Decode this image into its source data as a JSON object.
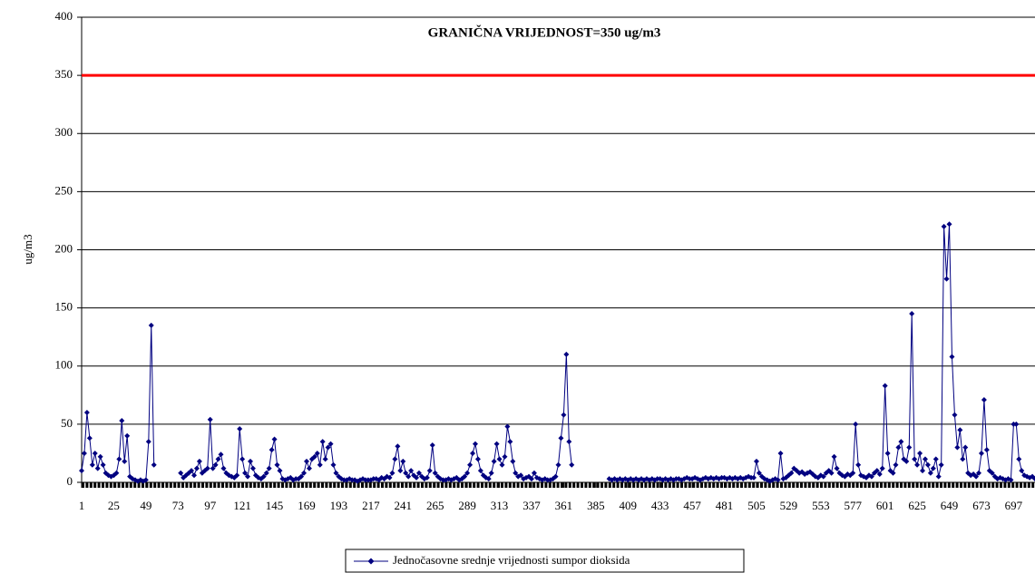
{
  "chart_data": {
    "type": "line",
    "ylabel": "ug/m3",
    "annotation": "GRANIČNA VRIJEDNOST=350 ug/m3",
    "limit": 350,
    "limit_color": "#ff0000",
    "xlim": [
      1,
      713
    ],
    "xticks": [
      1,
      25,
      49,
      73,
      97,
      121,
      145,
      169,
      193,
      217,
      241,
      265,
      289,
      313,
      337,
      361,
      385,
      409,
      433,
      457,
      481,
      505,
      529,
      553,
      577,
      601,
      625,
      649,
      673,
      697
    ],
    "ylim": [
      0,
      400
    ],
    "yticks": [
      0,
      50,
      100,
      150,
      200,
      250,
      300,
      350,
      400
    ],
    "grid": true,
    "legend": "bottom",
    "x": [
      1,
      3,
      5,
      7,
      9,
      11,
      13,
      15,
      17,
      19,
      21,
      23,
      25,
      27,
      29,
      31,
      33,
      35,
      37,
      39,
      41,
      43,
      45,
      47,
      49,
      51,
      53,
      55,
      57,
      59,
      61,
      63,
      65,
      67,
      69,
      71,
      73,
      75,
      77,
      79,
      81,
      83,
      85,
      87,
      89,
      91,
      93,
      95,
      97,
      99,
      101,
      103,
      105,
      107,
      109,
      111,
      113,
      115,
      117,
      119,
      121,
      123,
      125,
      127,
      129,
      131,
      133,
      135,
      137,
      139,
      141,
      143,
      145,
      147,
      149,
      151,
      153,
      155,
      157,
      159,
      161,
      163,
      165,
      167,
      169,
      171,
      173,
      175,
      177,
      179,
      181,
      183,
      185,
      187,
      189,
      191,
      193,
      195,
      197,
      199,
      201,
      203,
      205,
      207,
      209,
      211,
      213,
      215,
      217,
      219,
      221,
      223,
      225,
      227,
      229,
      231,
      233,
      235,
      237,
      239,
      241,
      243,
      245,
      247,
      249,
      251,
      253,
      255,
      257,
      259,
      261,
      263,
      265,
      267,
      269,
      271,
      273,
      275,
      277,
      279,
      281,
      283,
      285,
      287,
      289,
      291,
      293,
      295,
      297,
      299,
      301,
      303,
      305,
      307,
      309,
      311,
      313,
      315,
      317,
      319,
      321,
      323,
      325,
      327,
      329,
      331,
      333,
      335,
      337,
      339,
      341,
      343,
      345,
      347,
      349,
      351,
      353,
      355,
      357,
      359,
      361,
      363,
      365,
      367,
      369,
      371,
      373,
      375,
      377,
      379,
      381,
      383,
      385,
      387,
      389,
      391,
      393,
      395,
      397,
      399,
      401,
      403,
      405,
      407,
      409,
      411,
      413,
      415,
      417,
      419,
      421,
      423,
      425,
      427,
      429,
      431,
      433,
      435,
      437,
      439,
      441,
      443,
      445,
      447,
      449,
      451,
      453,
      455,
      457,
      459,
      461,
      463,
      465,
      467,
      469,
      471,
      473,
      475,
      477,
      479,
      481,
      483,
      485,
      487,
      489,
      491,
      493,
      495,
      497,
      499,
      501,
      503,
      505,
      507,
      509,
      511,
      513,
      515,
      517,
      519,
      521,
      523,
      525,
      527,
      529,
      531,
      533,
      535,
      537,
      539,
      541,
      543,
      545,
      547,
      549,
      551,
      553,
      555,
      557,
      559,
      561,
      563,
      565,
      567,
      569,
      571,
      573,
      575,
      577,
      579,
      581,
      583,
      585,
      587,
      589,
      591,
      593,
      595,
      597,
      599,
      601,
      603,
      605,
      607,
      609,
      611,
      613,
      615,
      617,
      619,
      621,
      623,
      625,
      627,
      629,
      631,
      633,
      635,
      637,
      639,
      641,
      643,
      645,
      647,
      649,
      651,
      653,
      655,
      657,
      659,
      661,
      663,
      665,
      667,
      669,
      671,
      673,
      675,
      677,
      679,
      681,
      683,
      685,
      687,
      689,
      691,
      693,
      695,
      697,
      699,
      701,
      703,
      705,
      707,
      709,
      711,
      713
    ],
    "series": [
      {
        "name": "Jednočasovne srednje vrijednosti sumpor dioksida",
        "color": "#000080",
        "values": [
          10,
          25,
          60,
          38,
          15,
          25,
          12,
          22,
          15,
          8,
          6,
          5,
          6,
          8,
          20,
          53,
          18,
          40,
          5,
          3,
          2,
          1,
          2,
          1,
          2,
          35,
          135,
          15,
          null,
          null,
          null,
          null,
          null,
          null,
          null,
          null,
          null,
          8,
          4,
          6,
          8,
          10,
          6,
          12,
          18,
          8,
          10,
          12,
          54,
          12,
          15,
          20,
          24,
          12,
          8,
          6,
          5,
          4,
          6,
          46,
          20,
          8,
          5,
          18,
          12,
          6,
          4,
          3,
          5,
          8,
          12,
          28,
          37,
          15,
          10,
          3,
          2,
          3,
          4,
          2,
          3,
          3,
          5,
          8,
          18,
          12,
          20,
          22,
          25,
          15,
          35,
          20,
          30,
          33,
          15,
          8,
          5,
          3,
          2,
          2,
          3,
          2,
          2,
          1,
          2,
          3,
          2,
          2,
          2,
          3,
          3,
          2,
          4,
          3,
          5,
          4,
          8,
          20,
          31,
          10,
          18,
          8,
          5,
          10,
          6,
          4,
          8,
          5,
          3,
          4,
          10,
          32,
          8,
          5,
          3,
          2,
          2,
          3,
          2,
          3,
          4,
          2,
          3,
          5,
          8,
          15,
          25,
          33,
          20,
          10,
          6,
          4,
          3,
          8,
          18,
          33,
          20,
          15,
          22,
          48,
          35,
          18,
          8,
          5,
          6,
          3,
          4,
          5,
          3,
          8,
          4,
          3,
          2,
          3,
          2,
          2,
          3,
          5,
          15,
          38,
          58,
          110,
          35,
          15,
          null,
          null,
          null,
          null,
          null,
          null,
          null,
          null,
          null,
          null,
          null,
          null,
          null,
          3,
          2,
          3,
          2,
          3,
          2,
          3,
          2,
          3,
          2,
          3,
          2,
          3,
          2,
          3,
          2,
          3,
          2,
          3,
          3,
          2,
          3,
          2,
          3,
          2,
          3,
          3,
          2,
          3,
          4,
          3,
          3,
          4,
          3,
          2,
          3,
          4,
          3,
          4,
          3,
          4,
          3,
          4,
          4,
          3,
          4,
          3,
          4,
          3,
          4,
          3,
          4,
          5,
          4,
          4,
          18,
          8,
          5,
          3,
          2,
          1,
          2,
          3,
          2,
          25,
          3,
          4,
          6,
          8,
          12,
          10,
          8,
          9,
          7,
          8,
          9,
          7,
          5,
          4,
          6,
          5,
          8,
          10,
          8,
          22,
          12,
          8,
          6,
          5,
          7,
          6,
          8,
          50,
          15,
          6,
          5,
          4,
          6,
          5,
          8,
          10,
          7,
          12,
          83,
          25,
          10,
          8,
          15,
          30,
          35,
          20,
          18,
          30,
          145,
          20,
          15,
          25,
          10,
          20,
          15,
          8,
          12,
          20,
          5,
          15,
          220,
          175,
          222,
          108,
          58,
          30,
          45,
          20,
          30,
          8,
          6,
          7,
          5,
          8,
          25,
          71,
          28,
          10,
          8,
          5,
          3,
          4,
          3,
          2,
          3,
          2,
          50,
          50,
          20,
          10,
          6,
          5,
          4,
          5,
          3
        ]
      }
    ]
  }
}
